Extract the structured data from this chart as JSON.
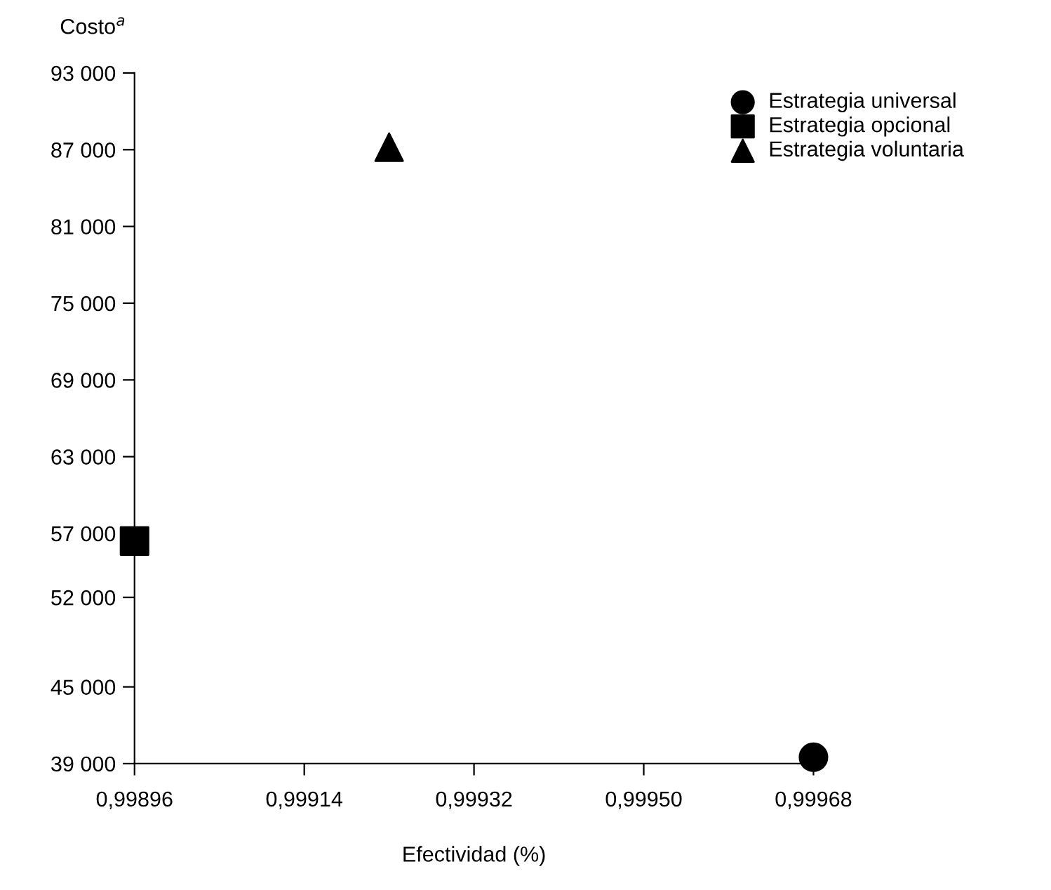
{
  "chart_data": {
    "type": "scatter",
    "xlabel": "Efectividad (%)",
    "ylabel": "Costo$^{a}$",
    "series": [
      {
        "name": "Estrategia universal",
        "color": "#000000",
        "marker": "circle",
        "x": [
          0.99968
        ],
        "values": [
          39500
        ]
      },
      {
        "name": "Estrategia opcional",
        "color": "#000000",
        "marker": "square",
        "x": [
          0.99896
        ],
        "values": [
          56400
        ]
      },
      {
        "name": "Estrategia voluntaria",
        "color": "#000000",
        "marker": "triangle",
        "x": [
          0.99923
        ],
        "values": [
          87200
        ]
      }
    ],
    "xlim": [
      0.99896,
      0.99968
    ],
    "xticks": [
      {
        "value": 0.99896,
        "label": "0,99896"
      },
      {
        "value": 0.99914,
        "label": "0,99914"
      },
      {
        "value": 0.99932,
        "label": "0,99932"
      },
      {
        "value": 0.9995,
        "label": "0,99950"
      },
      {
        "value": 0.99968,
        "label": "0,99968"
      }
    ],
    "ylim": [
      39000,
      93000
    ],
    "yticks": [
      {
        "value": 39000,
        "label": "39 000"
      },
      {
        "value": 45000,
        "label": "45 000"
      },
      {
        "value": 52000,
        "label": "52 000"
      },
      {
        "value": 57000,
        "label": "57 000"
      },
      {
        "value": 63000,
        "label": "63 000"
      },
      {
        "value": 69000,
        "label": "69 000"
      },
      {
        "value": 75000,
        "label": "75 000"
      },
      {
        "value": 81000,
        "label": "81 000"
      },
      {
        "value": 87000,
        "label": "87 000"
      },
      {
        "value": 93000,
        "label": "93 000"
      }
    ],
    "grid": false,
    "legend": "top right"
  }
}
